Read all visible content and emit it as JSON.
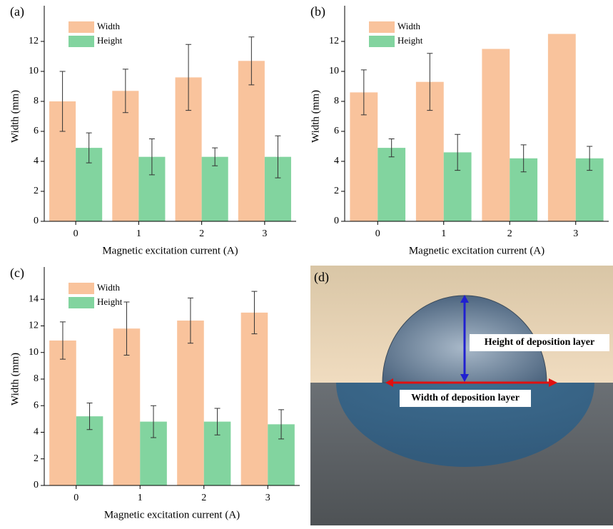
{
  "chart_data": [
    {
      "type": "bar",
      "label": "(a)",
      "xlabel": "Magnetic excitation current (A)",
      "ylabel": "Width (mm)",
      "categories": [
        "0",
        "1",
        "2",
        "3"
      ],
      "series": [
        {
          "name": "Width",
          "color": "#f9c39c",
          "values": [
            8.0,
            8.7,
            9.6,
            10.7
          ],
          "errors": [
            2.0,
            1.45,
            2.2,
            1.6
          ]
        },
        {
          "name": "Height",
          "color": "#82d49f",
          "values": [
            4.9,
            4.3,
            4.3,
            4.3
          ],
          "errors": [
            1.0,
            1.2,
            0.6,
            1.4
          ]
        }
      ],
      "ylim": [
        0,
        14
      ],
      "yticks": [
        0,
        2,
        4,
        6,
        8,
        10,
        12
      ],
      "legend": "upper left"
    },
    {
      "type": "bar",
      "label": "(b)",
      "xlabel": "Magnetic excitation current (A)",
      "ylabel": "Width (mm)",
      "categories": [
        "0",
        "1",
        "2",
        "3"
      ],
      "series": [
        {
          "name": "Width",
          "color": "#f9c39c",
          "values": [
            8.6,
            9.3,
            11.5,
            12.5
          ],
          "errors": [
            1.5,
            1.9,
            null,
            null
          ]
        },
        {
          "name": "Height",
          "color": "#82d49f",
          "values": [
            4.9,
            4.6,
            4.2,
            4.2
          ],
          "errors": [
            0.6,
            1.2,
            0.9,
            0.8
          ]
        }
      ],
      "ylim": [
        0,
        14
      ],
      "yticks": [
        0,
        2,
        4,
        6,
        8,
        10,
        12
      ],
      "legend": "upper left"
    },
    {
      "type": "bar",
      "label": "(c)",
      "xlabel": "Magnetic excitation current (A)",
      "ylabel": "Width (mm)",
      "categories": [
        "0",
        "1",
        "2",
        "3"
      ],
      "series": [
        {
          "name": "Width",
          "color": "#f9c39c",
          "values": [
            10.9,
            11.8,
            12.4,
            13.0
          ],
          "errors": [
            1.4,
            2.0,
            1.7,
            1.6
          ]
        },
        {
          "name": "Height",
          "color": "#82d49f",
          "values": [
            5.2,
            4.8,
            4.8,
            4.6
          ],
          "errors": [
            1.0,
            1.2,
            1.0,
            1.1
          ]
        }
      ],
      "ylim": [
        0,
        16
      ],
      "yticks": [
        0,
        2,
        4,
        6,
        8,
        10,
        12,
        14
      ],
      "legend": "upper left"
    }
  ],
  "photo": {
    "label": "(d)",
    "height_label": "Height of deposition layer",
    "width_label": "Width of deposition layer"
  }
}
